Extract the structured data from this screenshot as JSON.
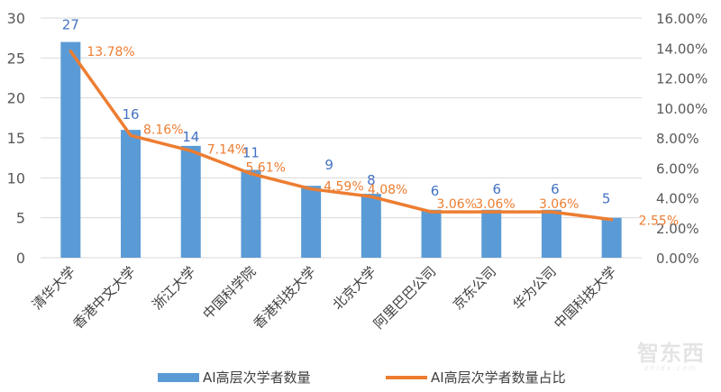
{
  "chart_data": {
    "type": "bar+line",
    "title": "",
    "categories": [
      "清华大学",
      "香港中文大学",
      "浙江大学",
      "中国科学院",
      "香港科技大学",
      "北京大学",
      "阿里巴巴公司",
      "京东公司",
      "华为公司",
      "中国科技大学"
    ],
    "series": [
      {
        "name": "AI高层次学者数量",
        "type": "bar",
        "axis": "left",
        "color": "#5b9bd5",
        "label_color": "#4472c4",
        "values": [
          27,
          16,
          14,
          11,
          9,
          8,
          6,
          6,
          6,
          5
        ],
        "labels": [
          "27",
          "16",
          "14",
          "11",
          "9",
          "8",
          "6",
          "6",
          "6",
          "5"
        ]
      },
      {
        "name": "AI高层次学者数量占比",
        "type": "line",
        "axis": "right",
        "color": "#ed7d31",
        "label_color": "#ed7d31",
        "values": [
          13.78,
          8.16,
          7.14,
          5.61,
          4.59,
          4.08,
          3.06,
          3.06,
          3.06,
          2.55
        ],
        "labels": [
          "13.78%",
          "8.16%",
          "7.14%",
          "5.61%",
          "4.59%",
          "4.08%",
          "3.06%",
          "3.06%",
          "3.06%",
          "2.55%"
        ]
      }
    ],
    "left_axis": {
      "ylim": [
        0,
        30
      ],
      "ticks": [
        0,
        5,
        10,
        15,
        20,
        25,
        30
      ],
      "tick_labels": [
        "0",
        "5",
        "10",
        "15",
        "20",
        "25",
        "30"
      ]
    },
    "right_axis": {
      "ylim": [
        0,
        16
      ],
      "ticks": [
        0,
        2,
        4,
        6,
        8,
        10,
        12,
        14,
        16
      ],
      "tick_labels": [
        "0.00%",
        "2.00%",
        "4.00%",
        "6.00%",
        "8.00%",
        "10.00%",
        "12.00%",
        "14.00%",
        "16.00%"
      ]
    },
    "xlabel": "",
    "ylabel": "",
    "grid": true,
    "legend_position": "bottom"
  },
  "legend": {
    "items": [
      {
        "label": "AI高层次学者数量",
        "color": "#5b9bd5",
        "kind": "bar"
      },
      {
        "label": "AI高层次学者数量占比",
        "color": "#ed7d31",
        "kind": "line"
      }
    ]
  },
  "watermark": {
    "text": "智东西",
    "sub": "zhidx.com"
  },
  "colors": {
    "grid": "#d9d9d9",
    "axis_text": "#595959",
    "category_text": "#404040"
  }
}
